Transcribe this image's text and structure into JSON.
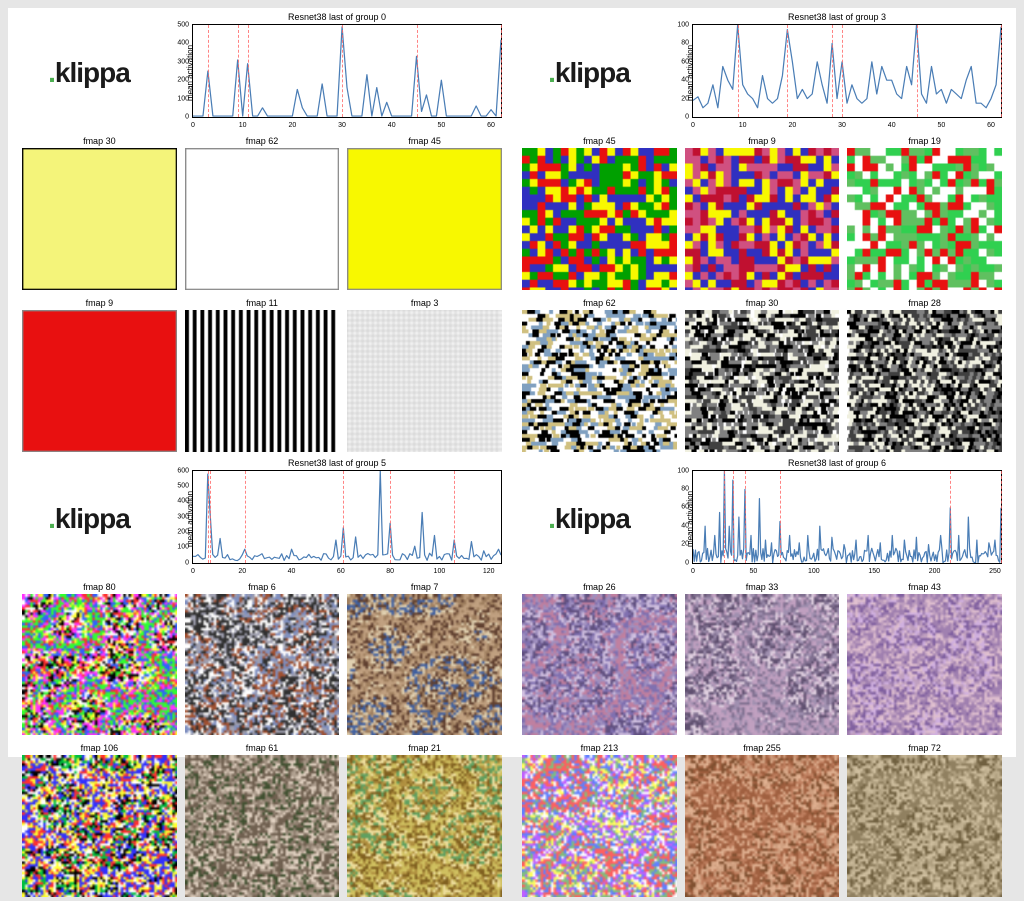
{
  "logo": {
    "prefix": ".",
    "text": "klippa",
    "dot_color": "#4caf50",
    "text_color": "#1a1a1a"
  },
  "axis": {
    "ylabel": "mean activation",
    "line_color": "#4a7db5",
    "line_width": 1.2,
    "vline_color": "#ff6666",
    "border_color": "#000000",
    "background": "#ffffff",
    "tick_fontsize": 7,
    "title_fontsize": 9
  },
  "quadrants": [
    {
      "chart_title": "Resnet38 last of group 0",
      "xlim": [
        0,
        62
      ],
      "ylim": [
        0,
        500
      ],
      "yticks": [
        0,
        100,
        200,
        300,
        400,
        500
      ],
      "xticks": [
        0,
        10,
        20,
        30,
        40,
        50,
        60
      ],
      "vlines": [
        3,
        9,
        11,
        30,
        45,
        62
      ],
      "series": [
        5,
        5,
        5,
        250,
        5,
        5,
        5,
        5,
        5,
        310,
        5,
        290,
        5,
        5,
        50,
        5,
        5,
        5,
        5,
        5,
        5,
        150,
        50,
        5,
        5,
        5,
        180,
        5,
        5,
        5,
        490,
        160,
        5,
        5,
        5,
        230,
        5,
        160,
        5,
        80,
        5,
        5,
        5,
        5,
        5,
        330,
        30,
        120,
        5,
        5,
        200,
        5,
        5,
        5,
        5,
        5,
        5,
        60,
        5,
        5,
        40,
        5,
        420
      ],
      "fmaps": [
        {
          "title": "fmap 30",
          "kind": "solid",
          "colors": [
            "#f4f47a"
          ],
          "border": "#000000"
        },
        {
          "title": "fmap 62",
          "kind": "solid",
          "colors": [
            "#ffffff"
          ],
          "border": "#888888"
        },
        {
          "title": "fmap 45",
          "kind": "solid",
          "colors": [
            "#f8f800"
          ],
          "border": "#888888"
        },
        {
          "title": "fmap 9",
          "kind": "solid",
          "colors": [
            "#e81010"
          ],
          "border": "#888888"
        },
        {
          "title": "fmap 11",
          "kind": "vstripe",
          "colors": [
            "#000000",
            "#ffffff"
          ],
          "period": 3
        },
        {
          "title": "fmap 3",
          "kind": "grid",
          "colors": [
            "#f0f0f0",
            "#c0c0c0"
          ],
          "period": 4
        }
      ]
    },
    {
      "chart_title": "Resnet38 last of group 3",
      "xlim": [
        0,
        62
      ],
      "ylim": [
        0,
        100
      ],
      "yticks": [
        0,
        20,
        40,
        60,
        80,
        100
      ],
      "xticks": [
        0,
        10,
        20,
        30,
        40,
        50,
        60
      ],
      "vlines": [
        9,
        19,
        28,
        30,
        45,
        62
      ],
      "series": [
        18,
        22,
        10,
        15,
        35,
        10,
        55,
        40,
        30,
        105,
        35,
        25,
        20,
        10,
        45,
        20,
        15,
        20,
        45,
        95,
        60,
        20,
        30,
        20,
        25,
        60,
        35,
        15,
        80,
        20,
        60,
        15,
        35,
        20,
        15,
        20,
        60,
        25,
        55,
        40,
        40,
        25,
        20,
        55,
        35,
        105,
        25,
        15,
        55,
        25,
        30,
        15,
        30,
        25,
        20,
        40,
        55,
        15,
        15,
        10,
        20,
        35,
        98
      ],
      "fmaps": [
        {
          "title": "fmap 45",
          "kind": "noise",
          "colors": [
            "#e81010",
            "#f8f800",
            "#3030c0",
            "#00a000"
          ],
          "scale": 6
        },
        {
          "title": "fmap 9",
          "kind": "noise",
          "colors": [
            "#c01030",
            "#f8f800",
            "#3030c0",
            "#d05080"
          ],
          "scale": 6
        },
        {
          "title": "fmap 19",
          "kind": "noise",
          "colors": [
            "#30d050",
            "#ffffff",
            "#60c060",
            "#e81010"
          ],
          "scale": 6
        },
        {
          "title": "fmap 62",
          "kind": "hstripe-noise",
          "colors": [
            "#000000",
            "#ffffff",
            "#80a0c0",
            "#d0c080"
          ],
          "scale": 3
        },
        {
          "title": "fmap 30",
          "kind": "hstripe-noise",
          "colors": [
            "#000000",
            "#f0f0e0",
            "#808080",
            "#404040"
          ],
          "scale": 3
        },
        {
          "title": "fmap 28",
          "kind": "diag-noise",
          "colors": [
            "#000000",
            "#f0f0e0",
            "#808080",
            "#404040"
          ],
          "scale": 3
        }
      ]
    },
    {
      "chart_title": "Resnet38 last of group 5",
      "xlim": [
        0,
        125
      ],
      "ylim": [
        0,
        600
      ],
      "yticks": [
        0,
        100,
        200,
        300,
        400,
        500,
        600
      ],
      "xticks": [
        0,
        20,
        40,
        60,
        80,
        100,
        120
      ],
      "vlines": [
        6,
        7,
        21,
        61,
        80,
        106
      ],
      "series_sparse": {
        "len": 126,
        "base": 30,
        "jitter": 25,
        "spikes": [
          [
            6,
            580
          ],
          [
            7,
            310
          ],
          [
            11,
            160
          ],
          [
            21,
            90
          ],
          [
            40,
            90
          ],
          [
            58,
            150
          ],
          [
            61,
            230
          ],
          [
            66,
            170
          ],
          [
            76,
            600
          ],
          [
            80,
            260
          ],
          [
            90,
            110
          ],
          [
            93,
            330
          ],
          [
            98,
            180
          ],
          [
            106,
            150
          ],
          [
            113,
            140
          ],
          [
            118,
            80
          ],
          [
            124,
            90
          ]
        ]
      },
      "fmaps": [
        {
          "title": "fmap 80",
          "kind": "deepdream",
          "colors": [
            "#ff3030",
            "#30ff30",
            "#3060ff",
            "#ff30ff",
            "#ffff30",
            "#ffffff",
            "#000000"
          ],
          "scale": 12
        },
        {
          "title": "fmap 6",
          "kind": "deepdream",
          "colors": [
            "#a0a0b0",
            "#303030",
            "#ffffff",
            "#a05030",
            "#8090c0"
          ],
          "scale": 10
        },
        {
          "title": "fmap 7",
          "kind": "deepdream",
          "colors": [
            "#a08060",
            "#c0a080",
            "#604030",
            "#e0d0b0",
            "#4060a0"
          ],
          "scale": 14
        },
        {
          "title": "fmap 106",
          "kind": "deepdream",
          "colors": [
            "#ff3030",
            "#3030ff",
            "#ffff30",
            "#ffffff",
            "#000000",
            "#00c040"
          ],
          "scale": 8
        },
        {
          "title": "fmap 61",
          "kind": "deepdream",
          "colors": [
            "#b0a090",
            "#706050",
            "#e0d0c0",
            "#405030",
            "#908070"
          ],
          "scale": 11
        },
        {
          "title": "fmap 21",
          "kind": "deepdream",
          "colors": [
            "#b09040",
            "#d0c060",
            "#806020",
            "#f0e0a0",
            "#60a060"
          ],
          "scale": 13
        }
      ]
    },
    {
      "chart_title": "Resnet38 last of group 6",
      "xlim": [
        0,
        255
      ],
      "ylim": [
        0,
        100
      ],
      "yticks": [
        0,
        20,
        40,
        60,
        80,
        100
      ],
      "xticks": [
        0,
        50,
        100,
        150,
        200,
        250
      ],
      "vlines": [
        26,
        33,
        43,
        72,
        213,
        255
      ],
      "series_sparse": {
        "len": 256,
        "base": 5,
        "jitter": 8,
        "spikes": [
          [
            10,
            40
          ],
          [
            18,
            30
          ],
          [
            22,
            55
          ],
          [
            26,
            100
          ],
          [
            30,
            40
          ],
          [
            33,
            90
          ],
          [
            38,
            50
          ],
          [
            43,
            80
          ],
          [
            48,
            30
          ],
          [
            55,
            70
          ],
          [
            60,
            25
          ],
          [
            65,
            22
          ],
          [
            72,
            45
          ],
          [
            80,
            30
          ],
          [
            88,
            22
          ],
          [
            95,
            30
          ],
          [
            105,
            40
          ],
          [
            115,
            28
          ],
          [
            125,
            20
          ],
          [
            135,
            25
          ],
          [
            145,
            30
          ],
          [
            155,
            22
          ],
          [
            165,
            30
          ],
          [
            175,
            25
          ],
          [
            185,
            28
          ],
          [
            195,
            20
          ],
          [
            205,
            30
          ],
          [
            213,
            60
          ],
          [
            220,
            30
          ],
          [
            228,
            50
          ],
          [
            235,
            25
          ],
          [
            245,
            22
          ],
          [
            250,
            25
          ],
          [
            255,
            60
          ]
        ]
      },
      "fmaps": [
        {
          "title": "fmap 26",
          "kind": "deepdream",
          "colors": [
            "#a090c0",
            "#c080a0",
            "#8070b0",
            "#d0c0e0",
            "#605080"
          ],
          "scale": 15
        },
        {
          "title": "fmap 33",
          "kind": "deepdream",
          "colors": [
            "#a090b0",
            "#c0a0c0",
            "#807090",
            "#e0d0e0",
            "#605070"
          ],
          "scale": 14
        },
        {
          "title": "fmap 43",
          "kind": "deepdream",
          "colors": [
            "#c0a0c0",
            "#a080b0",
            "#e0c0d0",
            "#8060a0",
            "#d0b0e0"
          ],
          "scale": 13
        },
        {
          "title": "fmap 213",
          "kind": "deepdream",
          "colors": [
            "#80c080",
            "#ff6060",
            "#6080ff",
            "#ffffff",
            "#c060ff",
            "#ffff60"
          ],
          "scale": 12
        },
        {
          "title": "fmap 255",
          "kind": "deepdream",
          "colors": [
            "#c08060",
            "#a06040",
            "#e0b090",
            "#805030",
            "#d0a080"
          ],
          "scale": 14
        },
        {
          "title": "fmap 72",
          "kind": "deepdream",
          "colors": [
            "#b0a080",
            "#908060",
            "#d0c0a0",
            "#706040",
            "#c0b090"
          ],
          "scale": 13
        }
      ]
    }
  ]
}
